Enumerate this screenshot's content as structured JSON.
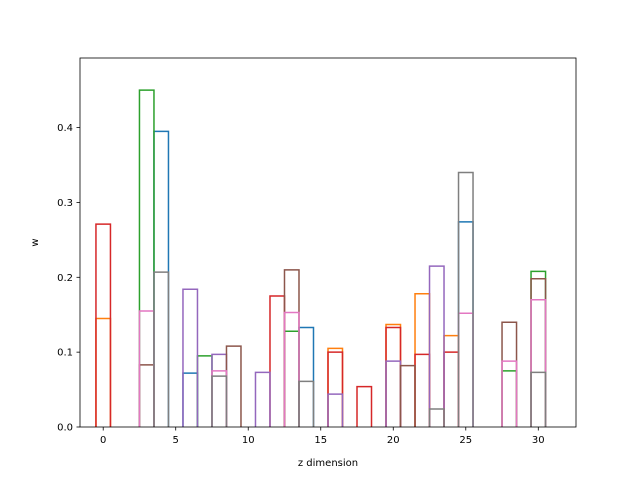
{
  "chart_data": {
    "type": "bar",
    "style": "step-outline-bars",
    "title": "",
    "xlabel": "z dimension",
    "ylabel": "w",
    "xlim": [
      -1.6,
      32.6
    ],
    "ylim": [
      0,
      0.493
    ],
    "xticks": [
      0,
      5,
      10,
      15,
      20,
      25,
      30
    ],
    "yticks": [
      0.0,
      0.1,
      0.2,
      0.3,
      0.4
    ],
    "grid": false,
    "legend": "none",
    "bar_width": 1,
    "series": [
      {
        "color": "#1f77b4",
        "bars": [
          {
            "x": 4,
            "y": 0.395
          },
          {
            "x": 6,
            "y": 0.072
          },
          {
            "x": 14,
            "y": 0.133
          },
          {
            "x": 25,
            "y": 0.274
          }
        ]
      },
      {
        "color": "#ff7f0e",
        "bars": [
          {
            "x": 0,
            "y": 0.145
          },
          {
            "x": 16,
            "y": 0.105
          },
          {
            "x": 20,
            "y": 0.137
          },
          {
            "x": 22,
            "y": 0.178
          },
          {
            "x": 24,
            "y": 0.122
          }
        ]
      },
      {
        "color": "#2ca02c",
        "bars": [
          {
            "x": 3,
            "y": 0.45
          },
          {
            "x": 7,
            "y": 0.095
          },
          {
            "x": 13,
            "y": 0.128
          },
          {
            "x": 28,
            "y": 0.075
          },
          {
            "x": 30,
            "y": 0.208
          }
        ]
      },
      {
        "color": "#d62728",
        "bars": [
          {
            "x": 0,
            "y": 0.271
          },
          {
            "x": 12,
            "y": 0.175
          },
          {
            "x": 16,
            "y": 0.1
          },
          {
            "x": 18,
            "y": 0.054
          },
          {
            "x": 20,
            "y": 0.133
          },
          {
            "x": 22,
            "y": 0.097
          },
          {
            "x": 24,
            "y": 0.1
          }
        ]
      },
      {
        "color": "#9467bd",
        "bars": [
          {
            "x": 6,
            "y": 0.184
          },
          {
            "x": 8,
            "y": 0.097
          },
          {
            "x": 11,
            "y": 0.073
          },
          {
            "x": 16,
            "y": 0.044
          },
          {
            "x": 20,
            "y": 0.088
          },
          {
            "x": 23,
            "y": 0.215
          }
        ]
      },
      {
        "color": "#8c564b",
        "bars": [
          {
            "x": 3,
            "y": 0.083
          },
          {
            "x": 9,
            "y": 0.108
          },
          {
            "x": 13,
            "y": 0.21
          },
          {
            "x": 21,
            "y": 0.082
          },
          {
            "x": 28,
            "y": 0.14
          },
          {
            "x": 30,
            "y": 0.198
          }
        ]
      },
      {
        "color": "#e377c2",
        "bars": [
          {
            "x": 3,
            "y": 0.155
          },
          {
            "x": 8,
            "y": 0.075
          },
          {
            "x": 13,
            "y": 0.153
          },
          {
            "x": 25,
            "y": 0.152
          },
          {
            "x": 28,
            "y": 0.088
          },
          {
            "x": 30,
            "y": 0.17
          }
        ]
      },
      {
        "color": "#7f7f7f",
        "bars": [
          {
            "x": 4,
            "y": 0.207
          },
          {
            "x": 8,
            "y": 0.068
          },
          {
            "x": 14,
            "y": 0.061
          },
          {
            "x": 23,
            "y": 0.024
          },
          {
            "x": 25,
            "y": 0.34
          },
          {
            "x": 30,
            "y": 0.073
          }
        ]
      }
    ]
  }
}
